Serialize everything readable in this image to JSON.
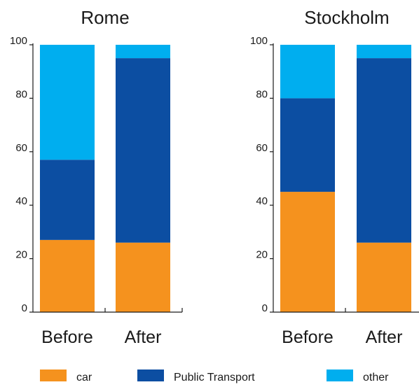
{
  "chart_data": {
    "type": "bar",
    "stacked": true,
    "categories": [
      "Before",
      "After"
    ],
    "ylim": [
      0,
      100
    ],
    "yticks": [
      0,
      20,
      40,
      60,
      80,
      100
    ],
    "legend": {
      "placement": "bottom",
      "items": [
        {
          "label": "car",
          "color": "#f5921e"
        },
        {
          "label": "Public Transport",
          "color": "#0c4ea2"
        },
        {
          "label": "other",
          "color": "#00aeef"
        }
      ]
    },
    "panels": [
      {
        "title": "Rome",
        "series": [
          {
            "name": "car",
            "values": [
              27,
              26
            ]
          },
          {
            "name": "Public Transport",
            "values": [
              30,
              69
            ]
          },
          {
            "name": "other",
            "values": [
              43,
              5
            ]
          }
        ]
      },
      {
        "title": "Stockholm",
        "series": [
          {
            "name": "car",
            "values": [
              45,
              26
            ]
          },
          {
            "name": "Public Transport",
            "values": [
              35,
              69
            ]
          },
          {
            "name": "other",
            "values": [
              20,
              5
            ]
          }
        ]
      }
    ]
  }
}
